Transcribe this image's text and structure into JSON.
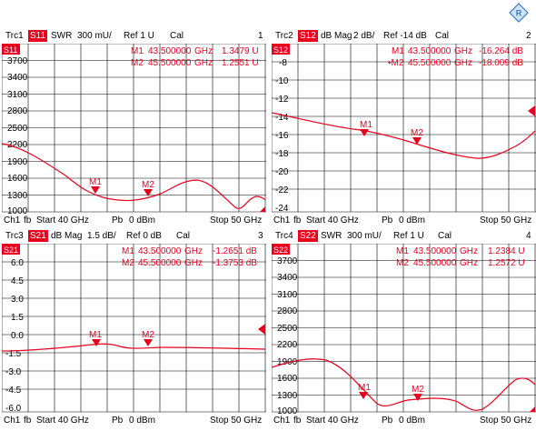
{
  "brand_color": "#e8001c",
  "logo_icon": "rohde-schwarz-diamond-icon",
  "panels": [
    {
      "header": {
        "trace": "Trc1",
        "param": "S11",
        "format": "SWR",
        "scale": "300 mU/",
        "ref": "Ref 1 U",
        "cal": "Cal",
        "num": "1"
      },
      "yticks": [
        "3700",
        "3400",
        "3100",
        "2800",
        "2500",
        "2200",
        "1900",
        "1600",
        "1300",
        "1000"
      ],
      "markers": [
        {
          "name": "M1",
          "freq": "43.500000",
          "unit": "GHz",
          "value": "1.3479 U"
        },
        {
          "name": "M2",
          "freq": "45.500000",
          "unit": "GHz",
          "value": "1.2551 U"
        }
      ],
      "footer": {
        "ch": "Ch1",
        "fb": "fb",
        "start": "Start 40 GHz",
        "pb": "Pb",
        "power": "0 dBm",
        "stop": "Stop 50 GHz"
      }
    },
    {
      "header": {
        "trace": "Trc2",
        "param": "S12",
        "format": "dB Mag",
        "scale": "2 dB/",
        "ref": "Ref -14 dB",
        "cal": "Cal",
        "num": "2"
      },
      "yticks": [
        "-8",
        "-10",
        "-12",
        "-14",
        "-16",
        "-18",
        "-20",
        "-22",
        "-24"
      ],
      "markers": [
        {
          "name": "M1",
          "freq": "43.500000",
          "unit": "GHz",
          "value": "-16.264 dB"
        },
        {
          "name": "•M2",
          "freq": "45.500000",
          "unit": "GHz",
          "value": "-18.009 dB"
        }
      ],
      "footer": {
        "ch": "Ch1",
        "fb": "fb",
        "start": "Start 40 GHz",
        "pb": "Pb",
        "power": "0 dBm",
        "stop": "Stop 50 GHz"
      }
    },
    {
      "header": {
        "trace": "Trc3",
        "param": "S21",
        "format": "dB Mag",
        "scale": "1.5 dB/",
        "ref": "Ref 0 dB",
        "cal": "Cal",
        "num": "3"
      },
      "yticks": [
        "6.0",
        "4.5",
        "3.0",
        "1.5",
        "0.0",
        "-1.5",
        "-3.0",
        "-4.5",
        "-6.0"
      ],
      "markers": [
        {
          "name": "M1",
          "freq": "43.500000",
          "unit": "GHz",
          "value": "-1.2651 dB"
        },
        {
          "name": "M2",
          "freq": "45.500000",
          "unit": "GHz",
          "value": "-1.3753 dB"
        }
      ],
      "footer": {
        "ch": "Ch1",
        "fb": "fb",
        "start": "Start 40 GHz",
        "pb": "Pb",
        "power": "0 dBm",
        "stop": "Stop 50 GHz"
      }
    },
    {
      "header": {
        "trace": "Trc4",
        "param": "S22",
        "format": "SWR",
        "scale": "300 mU/",
        "ref": "Ref 1 U",
        "cal": "Cal",
        "num": "4"
      },
      "yticks": [
        "3700",
        "3400",
        "3100",
        "2800",
        "2500",
        "2200",
        "1900",
        "1600",
        "1300",
        "1000"
      ],
      "markers": [
        {
          "name": "M1",
          "freq": "43.500000",
          "unit": "GHz",
          "value": "1.2384 U"
        },
        {
          "name": "M2",
          "freq": "45.500000",
          "unit": "GHz",
          "value": "1.2572 U"
        }
      ],
      "footer": {
        "ch": "Ch1",
        "fb": "fb",
        "start": "Start 40 GHz",
        "pb": "Pb",
        "power": "0 dBm",
        "stop": "Stop 50 GHz"
      }
    }
  ]
}
